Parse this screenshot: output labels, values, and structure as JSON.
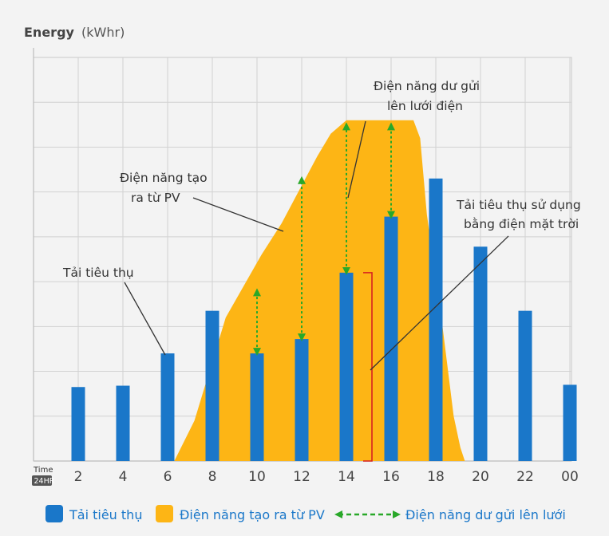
{
  "chart_data": {
    "type": "bar",
    "title": "",
    "ylabel_bold": "Energy",
    "ylabel_unit": "(kWhr)",
    "xlabel_top": "Time",
    "xlabel_badge": "24HR",
    "categories": [
      "2",
      "4",
      "6",
      "8",
      "10",
      "12",
      "14",
      "16",
      "18",
      "20",
      "22",
      "00"
    ],
    "ylim": [
      0,
      9
    ],
    "grid": true,
    "series": [
      {
        "name": "Tải tiêu thụ",
        "type": "bar",
        "color": "#1a77c9",
        "values": [
          1.65,
          1.68,
          2.4,
          3.35,
          2.4,
          2.72,
          4.2,
          5.45,
          6.3,
          4.78,
          3.35,
          1.7
        ]
      },
      {
        "name": "Điện năng tạo ra từ PV",
        "type": "area",
        "color": "#fdb515",
        "points": [
          [
            6.3,
            0
          ],
          [
            7.2,
            0.9
          ],
          [
            8.6,
            3.2
          ],
          [
            10.2,
            4.6
          ],
          [
            11.1,
            5.3
          ],
          [
            12.7,
            6.8
          ],
          [
            13.3,
            7.3
          ],
          [
            14.0,
            7.6
          ],
          [
            17.0,
            7.6
          ],
          [
            17.3,
            7.2
          ],
          [
            17.6,
            5.5
          ],
          [
            18.3,
            3.0
          ],
          [
            18.8,
            1.0
          ],
          [
            19.1,
            0.3
          ],
          [
            19.3,
            0
          ]
        ]
      }
    ],
    "surplus_arrows": [
      {
        "hour": 10,
        "from": 2.4,
        "to": 3.8
      },
      {
        "hour": 12,
        "from": 2.72,
        "to": 6.3
      },
      {
        "hour": 14,
        "from": 4.2,
        "to": 7.5
      },
      {
        "hour": 16,
        "from": 5.45,
        "to": 7.5
      }
    ],
    "bracket": {
      "hour": 15,
      "from": 0,
      "to": 4.2
    },
    "annotations": [
      {
        "lines": [
          "Tải tiêu thụ"
        ]
      },
      {
        "lines": [
          "Điện năng tạo",
          "ra từ PV"
        ]
      },
      {
        "lines": [
          "Điện năng dư gửi",
          "lên lưới điện"
        ]
      },
      {
        "lines": [
          "Tải tiêu thụ sử dụng",
          "bằng điện mặt trời"
        ]
      }
    ],
    "legend": [
      {
        "label": "Tải tiêu thụ",
        "color": "#1a77c9"
      },
      {
        "label": "Điện năng tạo ra từ PV",
        "color": "#fdb515"
      },
      {
        "label": "Điện năng dư gửi lên lưới",
        "color": "#29a829"
      }
    ],
    "arrow_color": "#29a829",
    "bracket_color": "#d62020"
  }
}
